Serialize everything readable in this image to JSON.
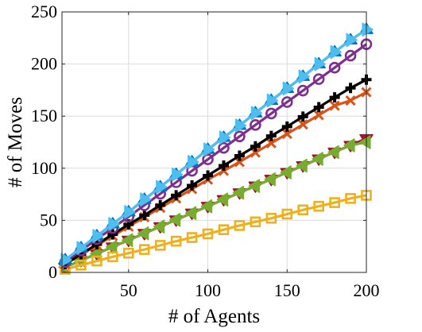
{
  "chart_data": {
    "type": "line",
    "title": "",
    "xlabel": "# of Agents",
    "ylabel": "# of Moves",
    "xlim": [
      8,
      200
    ],
    "ylim": [
      0,
      250
    ],
    "xticks": [
      50,
      100,
      150,
      200
    ],
    "xtick_labels": [
      "50",
      "100",
      "150",
      "200"
    ],
    "yticks": [
      0,
      50,
      100,
      150,
      200,
      250
    ],
    "ytick_labels": [
      "0",
      "50",
      "100",
      "150",
      "200",
      "250"
    ],
    "grid": true,
    "legend": "none",
    "x": [
      10,
      20,
      30,
      40,
      50,
      60,
      70,
      80,
      90,
      100,
      110,
      120,
      130,
      140,
      150,
      160,
      170,
      180,
      190,
      200
    ],
    "series": [
      {
        "color": "#a2142f",
        "marker": "triangle-down",
        "values": [
          5,
          11.5,
          18,
          24.5,
          31,
          37.5,
          44,
          50.5,
          57,
          63.5,
          70,
          76.5,
          83,
          89.5,
          96,
          102.5,
          109,
          115.5,
          122,
          128.5
        ]
      },
      {
        "color": "#77ac30",
        "marker": "triangle-left",
        "values": [
          5,
          11.5,
          18,
          24.5,
          31,
          37.5,
          44,
          50.5,
          57,
          63.5,
          70,
          76.5,
          83,
          89.5,
          96,
          102.5,
          109,
          115.5,
          122,
          125
        ]
      },
      {
        "color": "#edb120",
        "marker": "square",
        "values": [
          3,
          7,
          11,
          15,
          18.5,
          22,
          26,
          30,
          33.5,
          37,
          41,
          45,
          48.5,
          52,
          56,
          60,
          63.5,
          67,
          71,
          74
        ]
      },
      {
        "color": "#d95319",
        "marker": "x",
        "values": [
          8,
          17,
          26,
          35,
          44,
          53,
          62,
          71,
          80,
          89,
          97.5,
          106,
          115,
          124,
          133,
          142,
          151,
          160,
          165,
          173
        ]
      },
      {
        "color": "#000000",
        "marker": "plus",
        "values": [
          8,
          17.5,
          27,
          36.5,
          46,
          55,
          64.5,
          74,
          83.5,
          93,
          102.5,
          112,
          121,
          131,
          140,
          149.5,
          158.5,
          168,
          177,
          185
        ]
      },
      {
        "color": "#7e2f8e",
        "marker": "circle",
        "values": [
          10,
          21,
          32,
          42.5,
          53.5,
          64.5,
          75.5,
          86.5,
          97.5,
          108.5,
          119.5,
          130.5,
          141.5,
          152.5,
          163.5,
          174.5,
          185.5,
          196.5,
          208,
          219
        ]
      },
      {
        "color": "#0072bd",
        "marker": "triangle-up",
        "values": [
          12,
          23.5,
          35,
          46.5,
          58,
          70,
          82,
          94,
          106,
          118,
          129.5,
          141,
          153,
          165,
          176.5,
          188,
          200,
          211.5,
          223,
          233
        ]
      },
      {
        "color": "#4dbeee",
        "marker": "triangle-right",
        "values": [
          12,
          23.5,
          35,
          46.5,
          58,
          70,
          82,
          94,
          106,
          118,
          129.5,
          141,
          153,
          165,
          176.5,
          188,
          200,
          211.5,
          223,
          233
        ]
      }
    ]
  }
}
